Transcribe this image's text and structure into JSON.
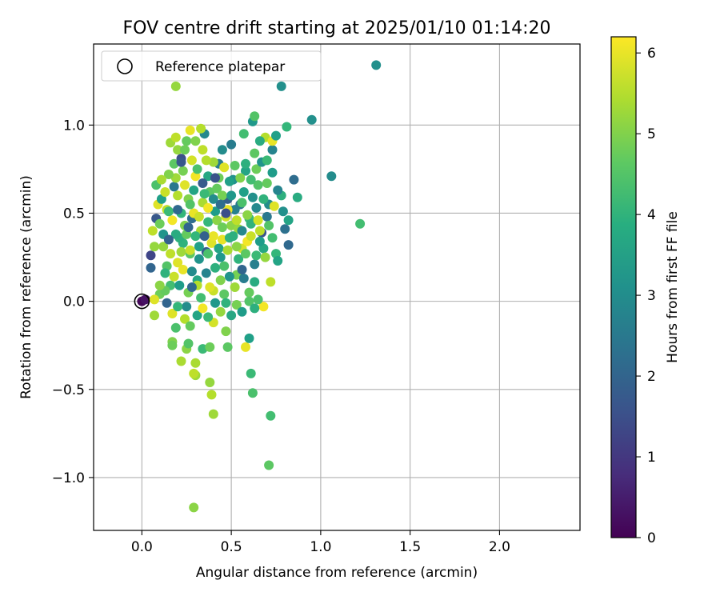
{
  "chart_data": {
    "type": "scatter",
    "title": "FOV centre drift starting at 2025/01/10 01:14:20",
    "xlabel": "Angular distance from reference (arcmin)",
    "ylabel": "Rotation from reference (arcmin)",
    "xlim": [
      -0.27,
      2.45
    ],
    "ylim": [
      -1.3,
      1.46
    ],
    "xticks": [
      0.0,
      0.5,
      1.0,
      1.5,
      2.0
    ],
    "yticks": [
      -1.0,
      -0.5,
      0.0,
      0.5,
      1.0
    ],
    "xtick_labels": [
      "0.0",
      "0.5",
      "1.0",
      "1.5",
      "2.0"
    ],
    "ytick_labels": [
      "−1.0",
      "−0.5",
      "0.0",
      "0.5",
      "1.0"
    ],
    "grid": true,
    "legend": {
      "position": "top-left",
      "entries": [
        {
          "label": "Reference platepar",
          "marker": "open-circle"
        }
      ]
    },
    "reference_point": {
      "x": 0.0,
      "y": 0.0
    },
    "colorbar": {
      "label": "Hours from first FF file",
      "range": [
        0,
        6.2
      ],
      "ticks": [
        0,
        1,
        2,
        3,
        4,
        5,
        6
      ],
      "tick_labels": [
        "0",
        "1",
        "2",
        "3",
        "4",
        "5",
        "6"
      ],
      "colormap": "viridis"
    },
    "points": [
      [
        0.0,
        0.0,
        0.1
      ],
      [
        0.02,
        0.01,
        0.3
      ],
      [
        0.05,
        0.26,
        1.3
      ],
      [
        0.05,
        0.19,
        2.0
      ],
      [
        0.07,
        0.31,
        5.2
      ],
      [
        0.08,
        0.47,
        1.7
      ],
      [
        0.1,
        0.04,
        4.8
      ],
      [
        0.12,
        0.38,
        3.2
      ],
      [
        0.14,
        0.52,
        5.6
      ],
      [
        0.16,
        0.09,
        4.3
      ],
      [
        0.18,
        0.65,
        2.5
      ],
      [
        0.2,
        0.22,
        5.9
      ],
      [
        0.22,
        0.81,
        1.5
      ],
      [
        0.23,
        0.33,
        4.0
      ],
      [
        0.25,
        -0.03,
        3.0
      ],
      [
        0.26,
        0.58,
        5.0
      ],
      [
        0.28,
        0.47,
        2.2
      ],
      [
        0.3,
        0.71,
        6.1
      ],
      [
        0.31,
        0.12,
        3.7
      ],
      [
        0.33,
        0.4,
        5.4
      ],
      [
        0.35,
        0.95,
        2.9
      ],
      [
        0.36,
        0.28,
        1.8
      ],
      [
        0.38,
        0.62,
        4.6
      ],
      [
        0.4,
        0.06,
        5.7
      ],
      [
        0.41,
        0.51,
        3.4
      ],
      [
        0.43,
        0.78,
        2.6
      ],
      [
        0.45,
        0.35,
        6.0
      ],
      [
        0.46,
        0.2,
        4.4
      ],
      [
        0.48,
        0.58,
        1.9
      ],
      [
        0.5,
        0.43,
        5.1
      ],
      [
        0.51,
        0.69,
        3.1
      ],
      [
        0.53,
        0.15,
        4.9
      ],
      [
        0.55,
        0.55,
        2.4
      ],
      [
        0.56,
        0.3,
        5.8
      ],
      [
        0.58,
        0.74,
        3.6
      ],
      [
        0.6,
        0.47,
        4.2
      ],
      [
        0.62,
        1.02,
        3.3
      ],
      [
        0.63,
        0.21,
        2.7
      ],
      [
        0.65,
        0.66,
        4.5
      ],
      [
        0.67,
        0.39,
        1.6
      ],
      [
        0.69,
        0.93,
        5.5
      ],
      [
        0.71,
        0.55,
        3.0
      ],
      [
        0.73,
        0.86,
        2.8
      ],
      [
        0.75,
        0.27,
        4.1
      ],
      [
        0.78,
        0.6,
        3.9
      ],
      [
        0.8,
        0.41,
        2.3
      ],
      [
        0.82,
        0.32,
        2.1
      ],
      [
        0.85,
        0.69,
        2.2
      ],
      [
        0.87,
        0.59,
        3.8
      ],
      [
        0.95,
        1.03,
        3.1
      ],
      [
        1.06,
        0.71,
        3.0
      ],
      [
        1.22,
        0.44,
        4.3
      ],
      [
        1.31,
        1.34,
        3.1
      ],
      [
        0.78,
        1.22,
        3.1
      ],
      [
        0.63,
        1.05,
        4.5
      ],
      [
        0.19,
        1.22,
        5.2
      ],
      [
        0.73,
        0.91,
        6.0
      ],
      [
        0.33,
        0.98,
        5.5
      ],
      [
        0.68,
        -0.03,
        6.1
      ],
      [
        0.72,
        0.11,
        5.6
      ],
      [
        0.58,
        -0.26,
        6.0
      ],
      [
        0.61,
        -0.41,
        4.2
      ],
      [
        0.62,
        -0.52,
        4.4
      ],
      [
        0.72,
        -0.65,
        4.3
      ],
      [
        0.71,
        -0.93,
        4.6
      ],
      [
        0.29,
        -1.17,
        5.1
      ],
      [
        0.4,
        -0.64,
        5.3
      ],
      [
        0.39,
        -0.53,
        5.5
      ],
      [
        0.38,
        -0.46,
        5.2
      ],
      [
        0.3,
        -0.35,
        5.4
      ],
      [
        0.3,
        -0.42,
        5.3
      ],
      [
        0.29,
        -0.41,
        5.6
      ],
      [
        0.22,
        -0.34,
        5.4
      ],
      [
        0.17,
        -0.23,
        5.0
      ],
      [
        0.17,
        -0.25,
        4.8
      ],
      [
        0.19,
        -0.15,
        4.4
      ],
      [
        0.25,
        -0.27,
        5.1
      ],
      [
        0.26,
        -0.24,
        4.5
      ],
      [
        0.34,
        -0.27,
        4.2
      ],
      [
        0.38,
        -0.26,
        4.8
      ],
      [
        0.48,
        -0.26,
        4.6
      ],
      [
        0.47,
        -0.17,
        5.0
      ],
      [
        0.6,
        -0.21,
        3.5
      ],
      [
        0.4,
        -0.12,
        5.8
      ],
      [
        0.07,
        -0.08,
        5.3
      ],
      [
        0.07,
        0.01,
        5.9
      ],
      [
        0.13,
        0.06,
        4.7
      ],
      [
        0.06,
        0.4,
        5.6
      ],
      [
        0.09,
        0.55,
        5.9
      ],
      [
        0.1,
        0.44,
        4.8
      ],
      [
        0.11,
        0.58,
        3.5
      ],
      [
        0.13,
        0.62,
        5.7
      ],
      [
        0.15,
        0.51,
        4.2
      ],
      [
        0.17,
        0.46,
        6.1
      ],
      [
        0.19,
        0.7,
        5.3
      ],
      [
        0.21,
        0.36,
        3.9
      ],
      [
        0.24,
        0.43,
        5.0
      ],
      [
        0.27,
        0.27,
        4.6
      ],
      [
        0.29,
        0.5,
        6.0
      ],
      [
        0.32,
        0.24,
        3.2
      ],
      [
        0.34,
        0.56,
        5.4
      ],
      [
        0.37,
        0.45,
        4.1
      ],
      [
        0.39,
        0.33,
        5.9
      ],
      [
        0.42,
        0.64,
        4.7
      ],
      [
        0.44,
        0.25,
        3.3
      ],
      [
        0.47,
        0.48,
        5.8
      ],
      [
        0.49,
        0.36,
        4.0
      ],
      [
        0.52,
        0.52,
        2.7
      ],
      [
        0.54,
        0.41,
        5.2
      ],
      [
        0.57,
        0.62,
        3.5
      ],
      [
        0.59,
        0.34,
        6.1
      ],
      [
        0.61,
        0.44,
        4.0
      ],
      [
        0.64,
        0.53,
        2.9
      ],
      [
        0.66,
        0.4,
        5.6
      ],
      [
        0.68,
        0.3,
        3.7
      ],
      [
        0.7,
        0.48,
        2.5
      ],
      [
        0.73,
        0.36,
        4.3
      ],
      [
        0.76,
        0.23,
        3.6
      ],
      [
        0.12,
        0.31,
        5.2
      ],
      [
        0.14,
        0.2,
        4.5
      ],
      [
        0.18,
        0.14,
        5.7
      ],
      [
        0.21,
        0.09,
        3.4
      ],
      [
        0.23,
        0.18,
        6.0
      ],
      [
        0.26,
        0.05,
        4.9
      ],
      [
        0.28,
        0.17,
        3.0
      ],
      [
        0.31,
        0.09,
        5.5
      ],
      [
        0.33,
        0.02,
        4.3
      ],
      [
        0.36,
        0.16,
        2.8
      ],
      [
        0.38,
        0.08,
        5.9
      ],
      [
        0.41,
        0.19,
        3.9
      ],
      [
        0.44,
        0.12,
        5.0
      ],
      [
        0.46,
        0.04,
        4.6
      ],
      [
        0.49,
        0.14,
        3.2
      ],
      [
        0.52,
        0.08,
        5.3
      ],
      [
        0.54,
        0.24,
        4.0
      ],
      [
        0.57,
        0.13,
        2.6
      ],
      [
        0.6,
        0.05,
        4.7
      ],
      [
        0.63,
        0.11,
        3.8
      ],
      [
        0.65,
        0.01,
        4.4
      ],
      [
        0.15,
        0.72,
        5.0
      ],
      [
        0.18,
        0.78,
        4.6
      ],
      [
        0.2,
        0.86,
        5.2
      ],
      [
        0.23,
        0.74,
        4.9
      ],
      [
        0.25,
        0.91,
        4.7
      ],
      [
        0.28,
        0.8,
        5.8
      ],
      [
        0.31,
        0.75,
        4.4
      ],
      [
        0.34,
        0.86,
        5.6
      ],
      [
        0.37,
        0.71,
        3.7
      ],
      [
        0.4,
        0.79,
        5.3
      ],
      [
        0.43,
        0.7,
        4.8
      ],
      [
        0.46,
        0.76,
        5.9
      ],
      [
        0.49,
        0.68,
        3.5
      ],
      [
        0.52,
        0.77,
        4.6
      ],
      [
        0.55,
        0.7,
        5.0
      ],
      [
        0.58,
        0.78,
        3.9
      ],
      [
        0.61,
        0.69,
        4.3
      ],
      [
        0.64,
        0.75,
        4.8
      ],
      [
        0.67,
        0.79,
        3.2
      ],
      [
        0.7,
        0.67,
        4.7
      ],
      [
        0.73,
        0.73,
        3.4
      ],
      [
        0.76,
        0.63,
        2.8
      ],
      [
        0.79,
        0.51,
        3.1
      ],
      [
        0.82,
        0.46,
        3.6
      ],
      [
        0.2,
        0.6,
        5.5
      ],
      [
        0.22,
        0.5,
        4.1
      ],
      [
        0.24,
        0.66,
        5.9
      ],
      [
        0.27,
        0.55,
        4.5
      ],
      [
        0.29,
        0.63,
        3.6
      ],
      [
        0.32,
        0.48,
        5.7
      ],
      [
        0.35,
        0.61,
        4.2
      ],
      [
        0.37,
        0.53,
        6.1
      ],
      [
        0.4,
        0.58,
        3.0
      ],
      [
        0.42,
        0.46,
        5.1
      ],
      [
        0.45,
        0.6,
        4.9
      ],
      [
        0.48,
        0.52,
        6.0
      ],
      [
        0.5,
        0.6,
        3.3
      ],
      [
        0.53,
        0.46,
        5.6
      ],
      [
        0.56,
        0.56,
        4.4
      ],
      [
        0.59,
        0.49,
        5.1
      ],
      [
        0.62,
        0.59,
        3.1
      ],
      [
        0.65,
        0.46,
        5.8
      ],
      [
        0.68,
        0.58,
        4.0
      ],
      [
        0.71,
        0.43,
        4.5
      ],
      [
        0.74,
        0.54,
        5.9
      ],
      [
        0.1,
        0.09,
        5.1
      ],
      [
        0.13,
        0.16,
        4.0
      ],
      [
        0.16,
        0.27,
        5.6
      ],
      [
        0.19,
        0.38,
        3.8
      ],
      [
        0.22,
        0.28,
        5.3
      ],
      [
        0.25,
        0.38,
        4.7
      ],
      [
        0.27,
        0.29,
        5.7
      ],
      [
        0.3,
        0.37,
        4.1
      ],
      [
        0.32,
        0.31,
        3.5
      ],
      [
        0.35,
        0.39,
        5.0
      ],
      [
        0.37,
        0.27,
        4.4
      ],
      [
        0.4,
        0.37,
        6.0
      ],
      [
        0.43,
        0.3,
        3.6
      ],
      [
        0.45,
        0.42,
        4.8
      ],
      [
        0.48,
        0.29,
        5.4
      ],
      [
        0.51,
        0.37,
        3.9
      ],
      [
        0.53,
        0.31,
        5.1
      ],
      [
        0.56,
        0.4,
        2.9
      ],
      [
        0.58,
        0.27,
        4.6
      ],
      [
        0.61,
        0.37,
        5.7
      ],
      [
        0.64,
        0.26,
        4.2
      ],
      [
        0.66,
        0.34,
        3.4
      ],
      [
        0.69,
        0.25,
        5.2
      ],
      [
        0.08,
        0.66,
        4.4
      ],
      [
        0.11,
        0.69,
        5.4
      ],
      [
        0.16,
        0.9,
        5.3
      ],
      [
        0.19,
        0.93,
        5.6
      ],
      [
        0.24,
        0.86,
        4.8
      ],
      [
        0.27,
        0.97,
        6.0
      ],
      [
        0.3,
        0.91,
        5.0
      ],
      [
        0.36,
        0.8,
        5.5
      ],
      [
        0.45,
        0.86,
        3.0
      ],
      [
        0.5,
        0.89,
        2.6
      ],
      [
        0.57,
        0.95,
        4.3
      ],
      [
        0.63,
        0.84,
        4.6
      ],
      [
        0.66,
        0.91,
        3.8
      ],
      [
        0.7,
        0.8,
        4.2
      ],
      [
        0.75,
        0.94,
        3.5
      ],
      [
        0.81,
        0.99,
        4.1
      ],
      [
        0.14,
        -0.01,
        2.0
      ],
      [
        0.17,
        -0.07,
        5.9
      ],
      [
        0.2,
        -0.03,
        4.1
      ],
      [
        0.24,
        -0.1,
        5.5
      ],
      [
        0.27,
        -0.14,
        4.7
      ],
      [
        0.31,
        -0.08,
        3.6
      ],
      [
        0.34,
        -0.04,
        6.1
      ],
      [
        0.37,
        -0.09,
        4.2
      ],
      [
        0.41,
        -0.01,
        3.3
      ],
      [
        0.44,
        -0.06,
        5.2
      ],
      [
        0.47,
        -0.01,
        4.0
      ],
      [
        0.5,
        -0.08,
        3.7
      ],
      [
        0.53,
        -0.02,
        4.9
      ],
      [
        0.56,
        -0.06,
        3.4
      ],
      [
        0.6,
        0.0,
        4.5
      ],
      [
        0.63,
        -0.04,
        3.9
      ],
      [
        0.26,
        0.42,
        2.0
      ],
      [
        0.34,
        0.67,
        1.8
      ],
      [
        0.22,
        0.79,
        1.7
      ],
      [
        0.41,
        0.7,
        1.6
      ],
      [
        0.28,
        0.08,
        2.1
      ],
      [
        0.35,
        0.37,
        1.9
      ],
      [
        0.47,
        0.5,
        1.5
      ],
      [
        0.56,
        0.18,
        2.0
      ],
      [
        0.15,
        0.35,
        1.9
      ],
      [
        0.2,
        0.52,
        2.1
      ],
      [
        0.44,
        0.55,
        2.2
      ]
    ]
  }
}
